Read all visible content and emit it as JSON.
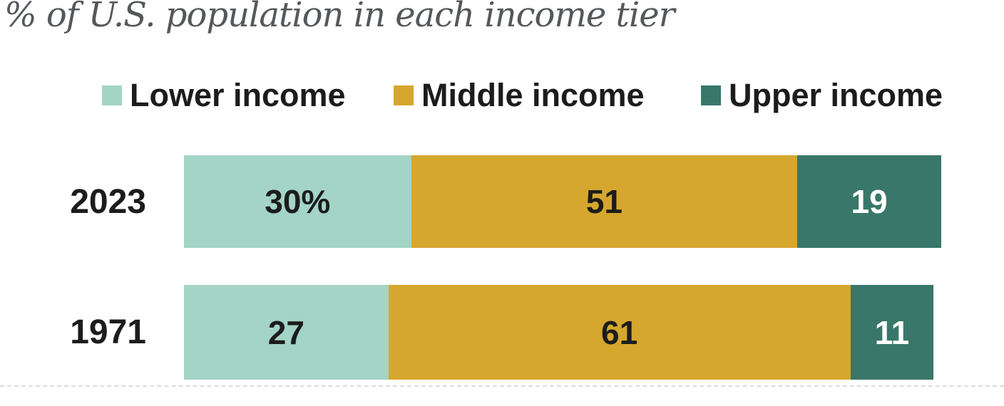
{
  "title": "% of U.S. population in each income tier",
  "legend": {
    "items": [
      {
        "label": "Lower income",
        "color": "#a3d4c6"
      },
      {
        "label": "Middle income",
        "color": "#d5a72e"
      },
      {
        "label": "Upper income",
        "color": "#387769"
      }
    ]
  },
  "chart_data": {
    "type": "bar",
    "subtype": "stacked-horizontal",
    "title": "% of U.S. population in each income tier",
    "categories": [
      "2023",
      "1971"
    ],
    "series": [
      {
        "name": "Lower income",
        "color": "#a3d4c6",
        "label_color": "#1c1c1c",
        "values": [
          30,
          27
        ]
      },
      {
        "name": "Middle income",
        "color": "#d5a72e",
        "label_color": "#1c1c1c",
        "values": [
          51,
          61
        ]
      },
      {
        "name": "Upper income",
        "color": "#387769",
        "label_color": "#ffffff",
        "values": [
          19,
          11
        ]
      }
    ],
    "value_labels": [
      [
        "30%",
        "51",
        "19"
      ],
      [
        "27",
        "61",
        "11"
      ]
    ],
    "xlim": [
      0,
      100
    ],
    "axes_visible": false,
    "grid": false,
    "legend_position": "top",
    "background": "#ffffff"
  },
  "colors": {
    "title_text": "#55585b",
    "label_text": "#1c1c1c",
    "divider": "#dcdcdc"
  }
}
